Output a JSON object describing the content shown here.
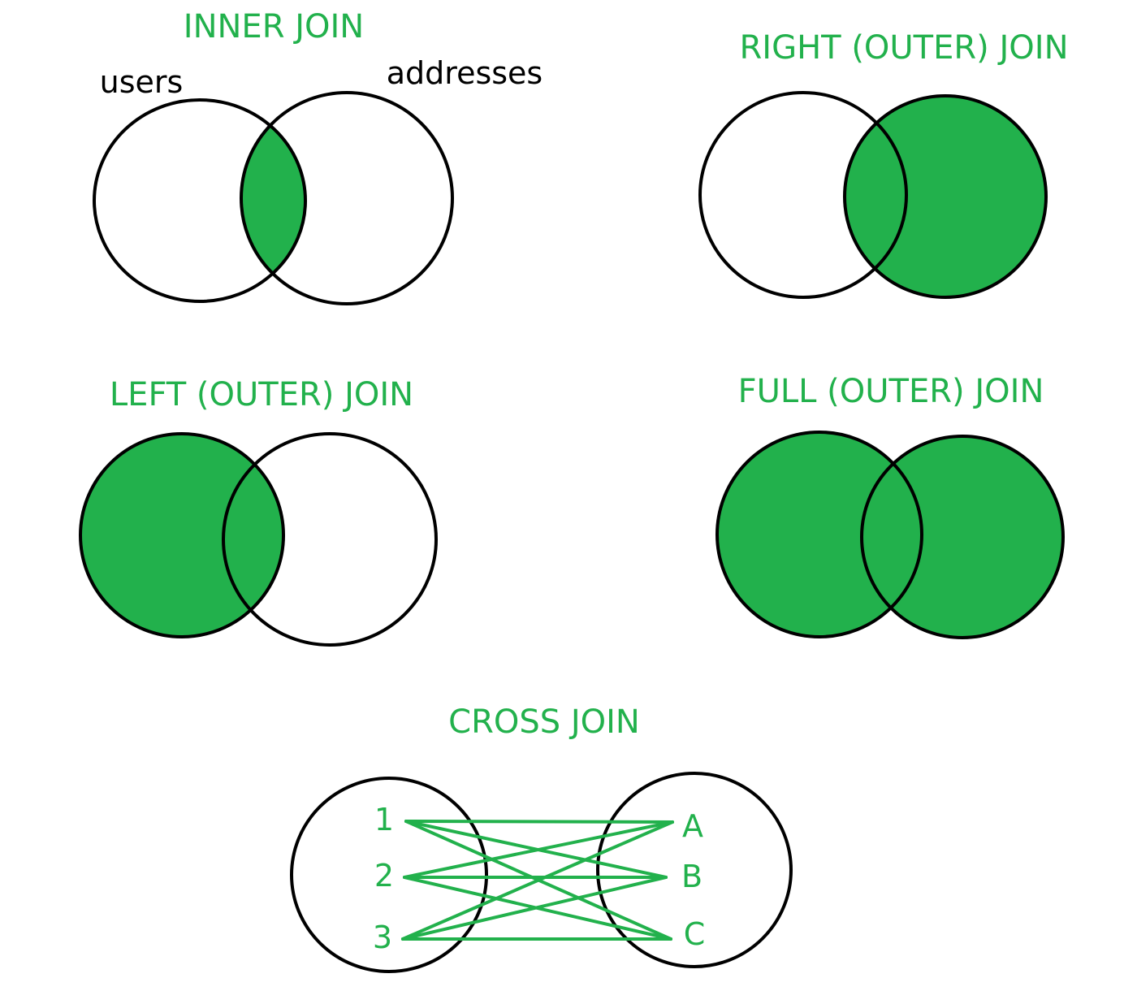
{
  "colors": {
    "highlight": "#22b14c",
    "outline": "#000000",
    "background": "#ffffff"
  },
  "joins": {
    "inner": {
      "title": "INNER JOIN",
      "left_label": "users",
      "right_label": "addresses",
      "shaded": "intersection"
    },
    "right": {
      "title": "RIGHT (OUTER) JOIN",
      "shaded": "right set (including intersection)"
    },
    "left": {
      "title": "LEFT (OUTER) JOIN",
      "shaded": "left set (including intersection)"
    },
    "full": {
      "title": "FULL (OUTER) JOIN",
      "shaded": "both sets"
    },
    "cross": {
      "title": "CROSS JOIN",
      "left_items": [
        "1",
        "2",
        "3"
      ],
      "right_items": [
        "A",
        "B",
        "C"
      ],
      "pairs": [
        [
          "1",
          "A"
        ],
        [
          "1",
          "B"
        ],
        [
          "1",
          "C"
        ],
        [
          "2",
          "A"
        ],
        [
          "2",
          "B"
        ],
        [
          "2",
          "C"
        ],
        [
          "3",
          "A"
        ],
        [
          "3",
          "B"
        ],
        [
          "3",
          "C"
        ]
      ]
    }
  }
}
